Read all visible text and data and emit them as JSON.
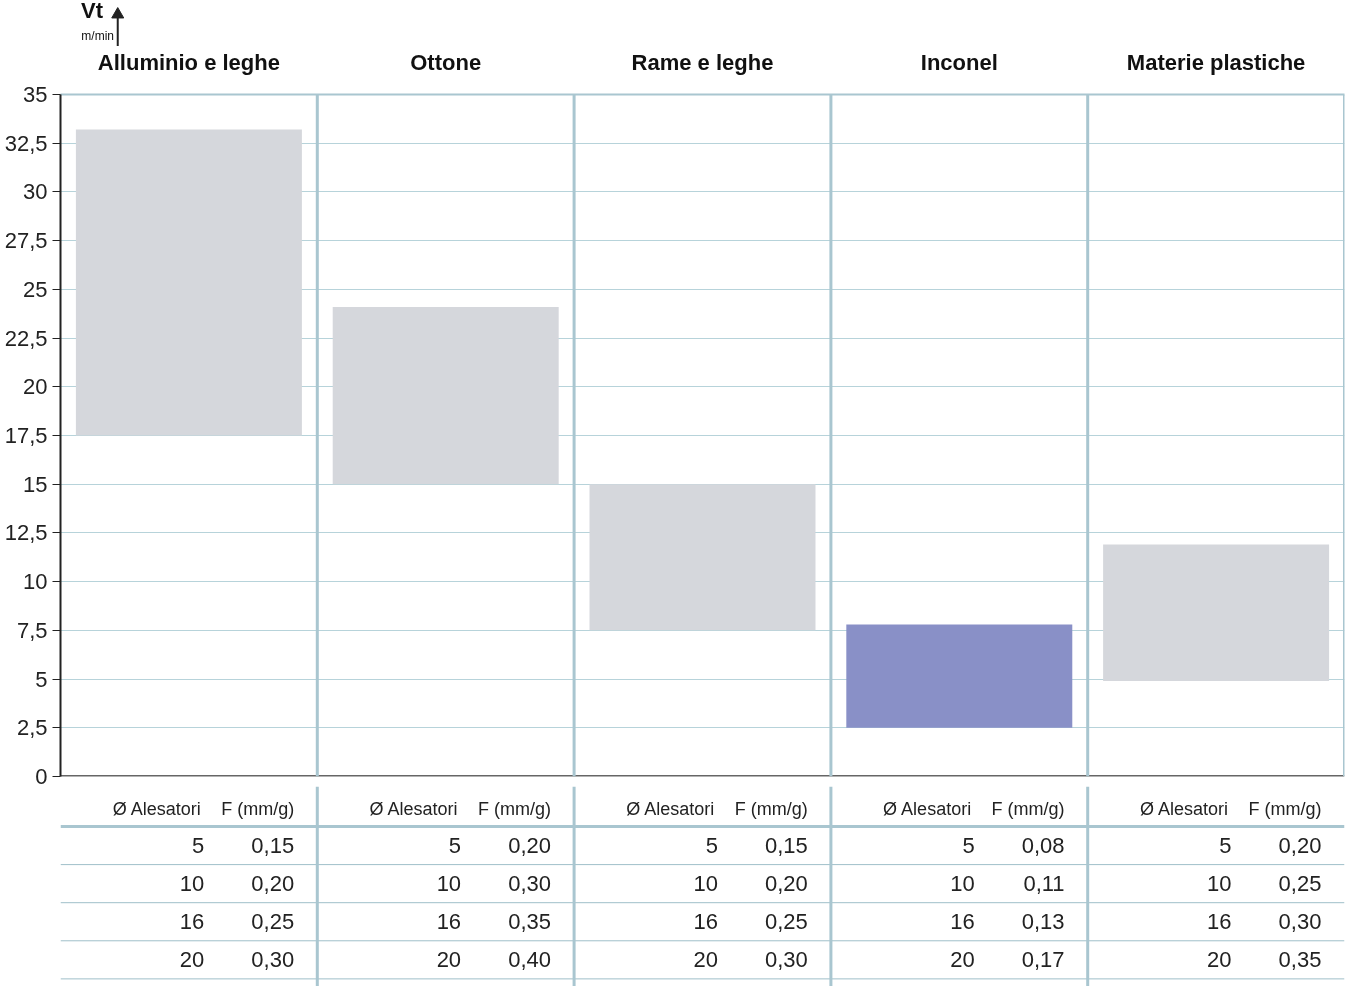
{
  "chart_data": {
    "type": "bar",
    "ylabel": "Vt\nm/min",
    "categories": [
      "Alluminio e leghe",
      "Ottone",
      "Rame e leghe",
      "Inconel",
      "Materie plastiche"
    ],
    "base": [
      17.5,
      15,
      7.5,
      2.5,
      4.9
    ],
    "values": [
      15.7,
      9.1,
      7.5,
      5.3,
      7.0
    ],
    "colors": [
      "#d5d7dc",
      "#d5d7dc",
      "#d5d7dc",
      "#8990c7",
      "#d5d7dc"
    ],
    "ylim": [
      0,
      35
    ],
    "yticks": [
      0,
      {
        "value": 2.5,
        "label": "2,5"
      },
      5,
      {
        "value": 7.5,
        "label": "7,5"
      },
      10,
      {
        "value": 12.5,
        "label": "12,5"
      },
      15,
      {
        "value": 17.5,
        "label": "17,5"
      },
      20,
      {
        "value": 22.5,
        "label": "22,5"
      },
      25,
      {
        "value": 27.5,
        "label": "27,5"
      },
      30,
      {
        "value": 32.5,
        "label": "32,5"
      },
      35
    ],
    "grid": "y",
    "annotations": [
      "Ø Alesatori",
      "F (mm/g)",
      "Ø Alesatori",
      "F (mm/g)",
      "Ø Alesatori",
      "F (mm/g)",
      "Ø Alesatori",
      "F (mm/g)",
      "Ø Alesatori",
      "F (mm/g)",
      "5",
      "0,15",
      "5",
      "0,20",
      "5",
      "0,15",
      "5",
      "0,08",
      "5",
      "0,20",
      "10",
      "0,20",
      "10",
      "0,30",
      "10",
      "0,20",
      "10",
      "0,11",
      "10",
      "0,25",
      "16",
      "0,25",
      "16",
      "0,35",
      "16",
      "0,25",
      "16",
      "0,13",
      "16",
      "0,30",
      "20",
      "0,30",
      "20",
      "0,40",
      "20",
      "0,30",
      "20",
      "0,17",
      "20",
      "0,35"
    ]
  }
}
